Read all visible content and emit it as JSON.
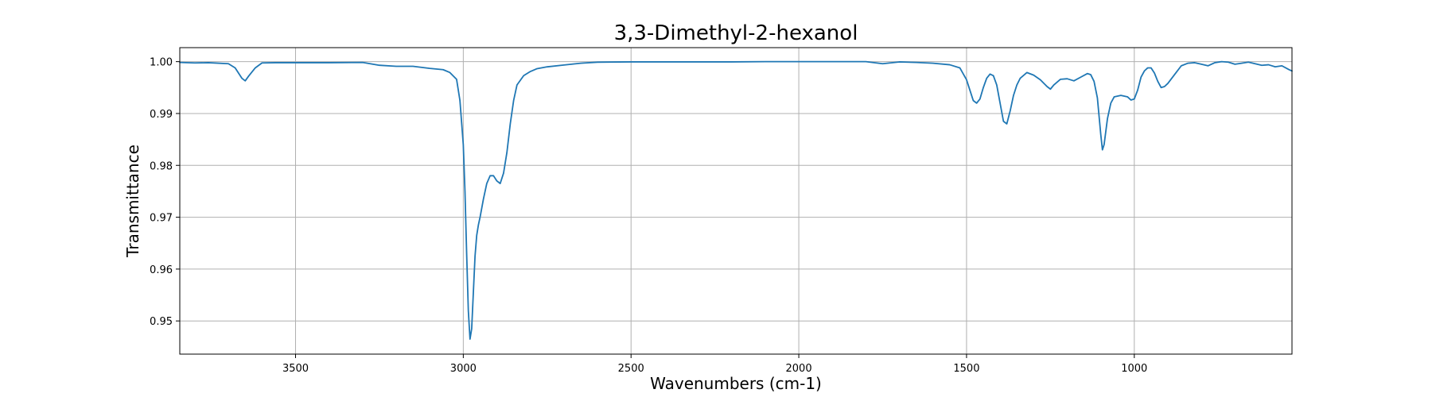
{
  "chart_data": {
    "type": "line",
    "title": "3,3-Dimethyl-2-hexanol",
    "xlabel": "Wavenumbers (cm-1)",
    "ylabel": "Transmittance",
    "xlim": [
      3845,
      530
    ],
    "ylim": [
      0.9436,
      1.0027
    ],
    "x_ticks": [
      3500,
      3000,
      2500,
      2000,
      1500,
      1000
    ],
    "y_ticks": [
      0.95,
      0.96,
      0.97,
      0.98,
      0.99,
      1.0
    ],
    "grid": true,
    "colors": {
      "line": "#1f77b4",
      "grid": "#b0b0b0"
    },
    "series": [
      {
        "x": [
          3845,
          3800,
          3760,
          3700,
          3680,
          3660,
          3650,
          3640,
          3620,
          3600,
          3560,
          3500,
          3400,
          3300,
          3250,
          3200,
          3150,
          3100,
          3060,
          3040,
          3020,
          3010,
          3000,
          2995,
          2990,
          2985,
          2980,
          2975,
          2970,
          2965,
          2960,
          2955,
          2950,
          2940,
          2930,
          2920,
          2910,
          2900,
          2890,
          2880,
          2870,
          2860,
          2850,
          2840,
          2820,
          2800,
          2780,
          2750,
          2700,
          2650,
          2600,
          2500,
          2400,
          2300,
          2200,
          2100,
          2000,
          1900,
          1800,
          1750,
          1700,
          1650,
          1600,
          1550,
          1520,
          1500,
          1490,
          1480,
          1470,
          1460,
          1450,
          1440,
          1430,
          1420,
          1410,
          1400,
          1390,
          1380,
          1370,
          1360,
          1350,
          1340,
          1320,
          1300,
          1280,
          1260,
          1250,
          1240,
          1220,
          1200,
          1180,
          1160,
          1140,
          1130,
          1120,
          1110,
          1100,
          1095,
          1090,
          1080,
          1070,
          1060,
          1040,
          1020,
          1010,
          1000,
          990,
          980,
          970,
          960,
          950,
          940,
          930,
          920,
          910,
          900,
          880,
          860,
          840,
          820,
          800,
          780,
          760,
          740,
          720,
          700,
          680,
          660,
          640,
          620,
          600,
          580,
          560,
          540,
          530
        ],
        "y": [
          0.99985,
          0.99975,
          0.9998,
          0.9996,
          0.9988,
          0.9968,
          0.9963,
          0.9972,
          0.9988,
          0.99975,
          0.9998,
          0.9998,
          0.9998,
          0.99985,
          0.9993,
          0.9991,
          0.9991,
          0.9987,
          0.99845,
          0.9979,
          0.9966,
          0.9925,
          0.984,
          0.975,
          0.963,
          0.952,
          0.9465,
          0.9485,
          0.9555,
          0.9625,
          0.9665,
          0.9685,
          0.97,
          0.9735,
          0.9765,
          0.978,
          0.978,
          0.977,
          0.9765,
          0.9785,
          0.9825,
          0.988,
          0.9925,
          0.9955,
          0.9973,
          0.9981,
          0.99865,
          0.999,
          0.99935,
          0.9997,
          0.9999,
          0.99995,
          0.99995,
          0.99995,
          0.99995,
          1.0,
          1.0,
          1.0,
          1.0,
          0.9996,
          0.99995,
          0.99985,
          0.9997,
          0.9994,
          0.9988,
          0.9965,
          0.9945,
          0.9925,
          0.992,
          0.9928,
          0.995,
          0.9968,
          0.9976,
          0.9973,
          0.9955,
          0.992,
          0.9885,
          0.988,
          0.9905,
          0.9935,
          0.9955,
          0.9968,
          0.9979,
          0.9974,
          0.9965,
          0.9952,
          0.9947,
          0.9955,
          0.9966,
          0.9967,
          0.9963,
          0.997,
          0.9977,
          0.9975,
          0.9962,
          0.993,
          0.986,
          0.983,
          0.984,
          0.989,
          0.992,
          0.9932,
          0.9935,
          0.9932,
          0.9926,
          0.9928,
          0.9945,
          0.997,
          0.9982,
          0.9988,
          0.9988,
          0.9978,
          0.9962,
          0.995,
          0.9952,
          0.9958,
          0.9975,
          0.9992,
          0.9997,
          0.9998,
          0.9995,
          0.9992,
          0.9998,
          1.0,
          0.9999,
          0.9995,
          0.9997,
          0.9999,
          0.9996,
          0.9993,
          0.9994,
          0.999,
          0.9992,
          0.9985,
          0.9982
        ]
      }
    ]
  }
}
